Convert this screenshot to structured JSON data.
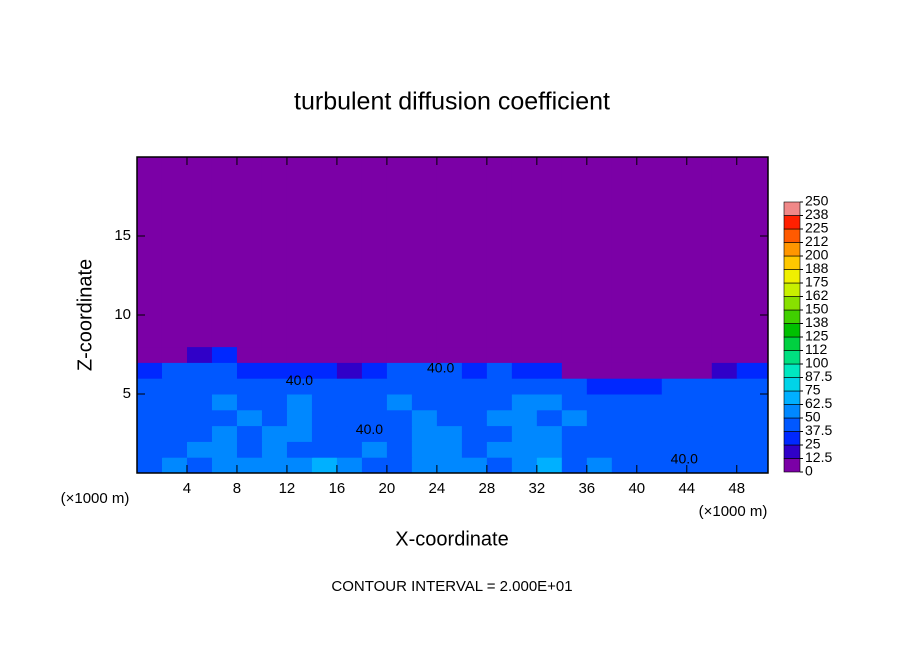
{
  "chart_data": {
    "type": "heatmap",
    "title": "turbulent diffusion coefficient",
    "x_label": "X-coordinate",
    "y_label": "Z-coordinate",
    "x_unit": "(×1000 m)",
    "y_unit": "(×1000 m)",
    "footer": "CONTOUR INTERVAL = 2.000E+01",
    "xlim": [
      0,
      50.5
    ],
    "ylim": [
      0,
      20
    ],
    "xticks": [
      4,
      8,
      12,
      16,
      20,
      24,
      28,
      32,
      36,
      40,
      44,
      48
    ],
    "yticks": [
      5,
      10,
      15
    ],
    "x_edges": [
      0,
      2,
      4,
      6,
      8,
      10,
      12,
      14,
      16,
      18,
      20,
      22,
      24,
      26,
      28,
      30,
      32,
      34,
      36,
      38,
      40,
      42,
      44,
      46,
      48,
      50.5
    ],
    "z_edges": [
      0,
      1,
      2,
      3,
      4,
      5,
      6,
      7,
      8,
      20
    ],
    "values": [
      [
        45,
        50,
        48,
        55,
        60,
        55,
        52,
        65,
        50,
        48,
        45,
        55,
        60,
        50,
        48,
        55,
        65,
        45,
        50,
        48,
        45,
        40,
        38,
        42,
        40
      ],
      [
        42,
        45,
        50,
        55,
        48,
        52,
        45,
        40,
        45,
        50,
        48,
        55,
        50,
        45,
        50,
        60,
        55,
        48,
        45,
        42,
        40,
        42,
        40,
        38,
        40
      ],
      [
        40,
        45,
        48,
        50,
        45,
        55,
        50,
        45,
        42,
        48,
        45,
        50,
        55,
        48,
        45,
        52,
        50,
        45,
        48,
        45,
        42,
        40,
        42,
        40,
        38
      ],
      [
        42,
        40,
        45,
        48,
        50,
        45,
        55,
        48,
        45,
        42,
        48,
        52,
        48,
        45,
        50,
        55,
        48,
        50,
        45,
        42,
        40,
        38,
        40,
        42,
        40
      ],
      [
        45,
        42,
        48,
        50,
        45,
        48,
        50,
        45,
        48,
        45,
        50,
        48,
        45,
        42,
        48,
        55,
        50,
        48,
        42,
        40,
        40,
        42,
        45,
        42,
        40
      ],
      [
        40,
        45,
        42,
        48,
        40,
        45,
        42,
        45,
        40,
        42,
        45,
        42,
        40,
        38,
        45,
        48,
        45,
        40,
        35,
        30,
        25,
        38,
        40,
        42,
        40
      ],
      [
        35,
        38,
        40,
        42,
        35,
        30,
        35,
        30,
        20,
        35,
        38,
        40,
        40,
        35,
        38,
        30,
        25,
        0,
        0,
        0,
        0,
        0,
        12,
        20,
        25
      ],
      [
        0,
        0,
        20,
        30,
        0,
        0,
        0,
        0,
        0,
        0,
        0,
        0,
        0,
        0,
        0,
        0,
        0,
        0,
        0,
        0,
        0,
        0,
        0,
        0,
        0
      ],
      [
        0,
        0,
        0,
        0,
        0,
        0,
        0,
        0,
        0,
        0,
        0,
        0,
        0,
        0,
        0,
        0,
        0,
        0,
        0,
        0,
        0,
        0,
        0,
        0,
        0
      ]
    ],
    "contour_labels": [
      {
        "text": "40.0",
        "x": 24.3,
        "z": 6.6
      },
      {
        "text": "40.0",
        "x": 13,
        "z": 5.8
      },
      {
        "text": "40.0",
        "x": 18.6,
        "z": 2.7
      },
      {
        "text": "40.0",
        "x": 43.8,
        "z": 0.85
      }
    ],
    "colorbar": {
      "ticks": [
        0,
        12.5,
        25,
        37.5,
        50,
        62.5,
        75,
        87.5,
        100,
        {
          "value": 112.5,
          "label": "112"
        },
        125,
        {
          "value": 137.5,
          "label": "138"
        },
        150,
        {
          "value": 162.5,
          "label": "162"
        },
        175,
        {
          "value": 187.5,
          "label": "188"
        },
        200,
        {
          "value": 212.5,
          "label": "212"
        },
        225,
        {
          "value": 237.5,
          "label": "238"
        },
        250
      ],
      "colors": [
        "#7b00a6",
        "#3000c8",
        "#0028ff",
        "#0058ff",
        "#0088ff",
        "#00b0ff",
        "#00d4e8",
        "#00e8c0",
        "#00e080",
        "#00d040",
        "#00c000",
        "#40d000",
        "#88e000",
        "#c8f000",
        "#f0f000",
        "#ffc800",
        "#ff9600",
        "#ff5a00",
        "#ff2000",
        "#f08888"
      ]
    }
  }
}
